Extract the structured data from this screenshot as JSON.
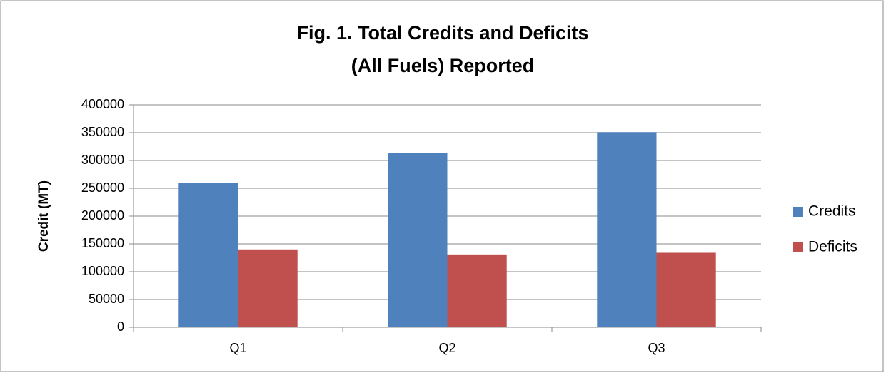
{
  "chart_data": {
    "type": "bar",
    "title": [
      "Fig. 1. Total Credits and Deficits",
      "(All Fuels) Reported"
    ],
    "y_label": "Credit (MT)",
    "categories": [
      "Q1",
      "Q2",
      "Q3"
    ],
    "series": [
      {
        "name": "Credits",
        "color": "#4f81bd",
        "values": [
          260000,
          314000,
          351000
        ]
      },
      {
        "name": "Deficits",
        "color": "#c0504d",
        "values": [
          140000,
          131000,
          134000
        ]
      }
    ],
    "ylim": [
      0,
      400000
    ],
    "yticks": [
      0,
      50000,
      100000,
      150000,
      200000,
      250000,
      300000,
      350000,
      400000
    ],
    "grid": true,
    "legend": "right"
  }
}
